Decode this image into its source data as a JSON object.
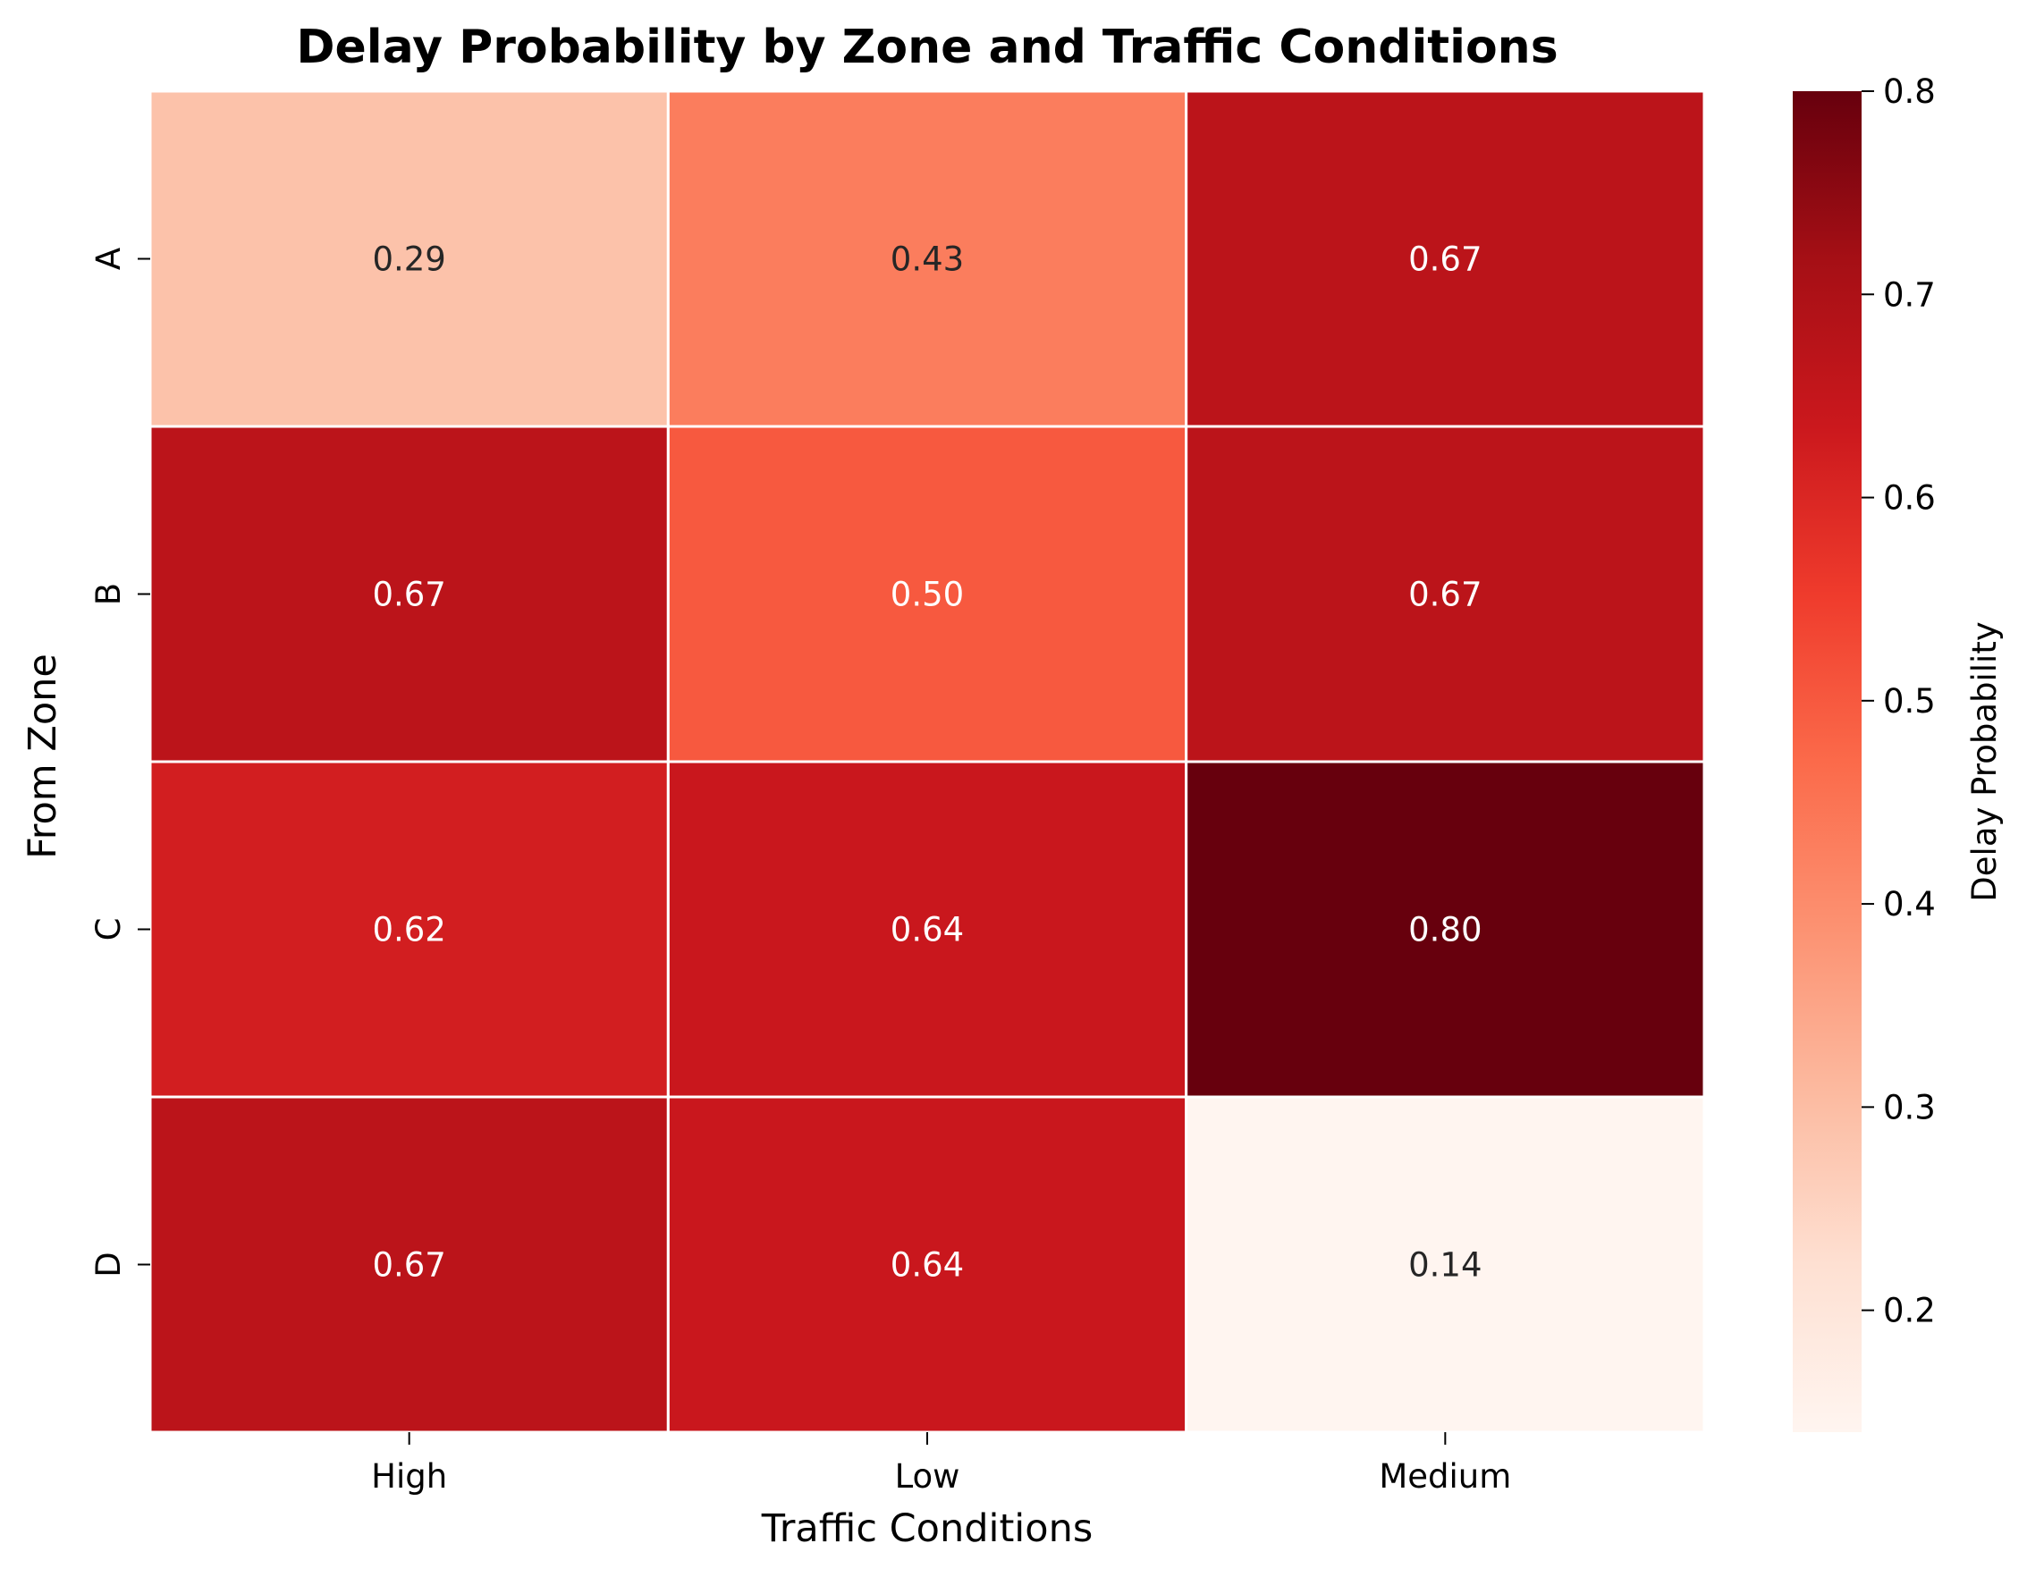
{
  "chart_data": {
    "type": "heatmap",
    "title": "Delay Probability by Zone and Traffic Conditions",
    "xlabel": "Traffic Conditions",
    "ylabel": "From Zone",
    "x_categories": [
      "High",
      "Low",
      "Medium"
    ],
    "y_categories": [
      "A",
      "B",
      "C",
      "D"
    ],
    "values": [
      [
        0.29,
        0.43,
        0.67
      ],
      [
        0.67,
        0.5,
        0.67
      ],
      [
        0.62,
        0.64,
        0.8
      ],
      [
        0.67,
        0.64,
        0.14
      ]
    ],
    "value_format": "0.00",
    "colormap": "Reds",
    "colormap_stops": [
      "#fff5f0",
      "#fee0d2",
      "#fcbba1",
      "#fc9272",
      "#fb6a4a",
      "#ef3b2c",
      "#cb181d",
      "#a50f15",
      "#67000d"
    ],
    "cell_border_color": "#ffffff",
    "colorbar": {
      "label": "Delay Probability",
      "range": [
        0.14,
        0.8
      ],
      "ticks": [
        0.2,
        0.3,
        0.4,
        0.5,
        0.6,
        0.7,
        0.8
      ],
      "tick_labels": [
        "0.2",
        "0.3",
        "0.4",
        "0.5",
        "0.6",
        "0.7",
        "0.8"
      ],
      "placement": "right"
    },
    "legend": "none"
  }
}
